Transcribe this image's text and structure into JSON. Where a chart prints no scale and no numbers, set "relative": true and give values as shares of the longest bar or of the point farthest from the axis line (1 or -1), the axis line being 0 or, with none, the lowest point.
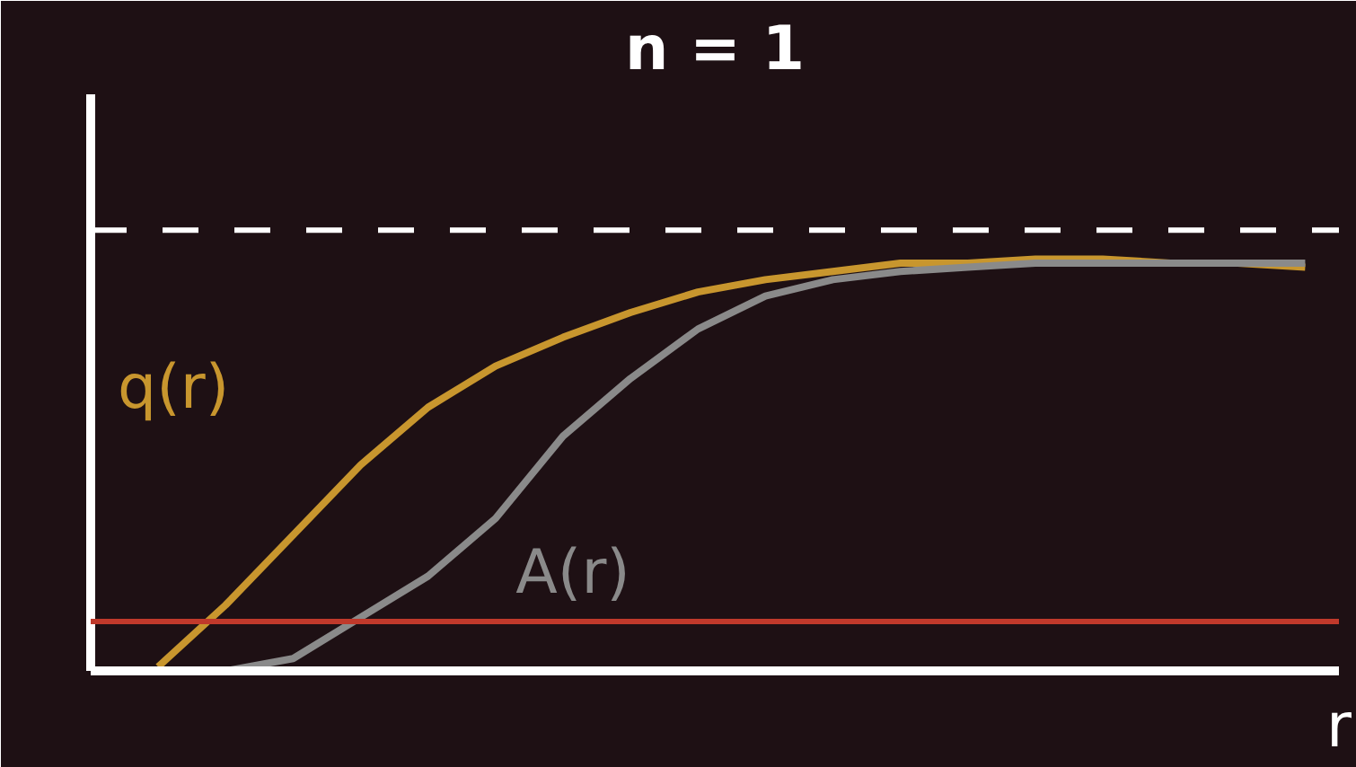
{
  "chart_data": {
    "type": "line",
    "title": "n = 1",
    "xlabel": "r",
    "relative": true,
    "grid": false,
    "categories": [
      null,
      null,
      null,
      null,
      null,
      null,
      null,
      null,
      null,
      null,
      null,
      null,
      null,
      null,
      null,
      null,
      null,
      null
    ],
    "series": [
      {
        "name": "q(r)",
        "color": "#c8962e",
        "values": [
          0.01,
          0.16,
          0.33,
          0.5,
          0.64,
          0.74,
          0.81,
          0.87,
          0.92,
          0.95,
          0.97,
          0.99,
          0.99,
          1.0,
          1.0,
          0.99,
          0.99,
          0.98
        ]
      },
      {
        "name": "A(r)",
        "color": "#8a8a8a",
        "values": [
          0.0,
          0.0,
          0.03,
          0.13,
          0.23,
          0.37,
          0.57,
          0.71,
          0.83,
          0.91,
          0.95,
          0.97,
          0.98,
          0.99,
          0.99,
          0.99,
          0.99,
          0.99
        ]
      }
    ],
    "ref_lines": [
      {
        "axis": "y",
        "value": 1.07,
        "label": null,
        "color": "#ffffff",
        "line_style": "dashed"
      },
      {
        "axis": "y",
        "value": 0.12,
        "label": null,
        "color": "#c0392b",
        "line_style": "solid"
      }
    ]
  }
}
